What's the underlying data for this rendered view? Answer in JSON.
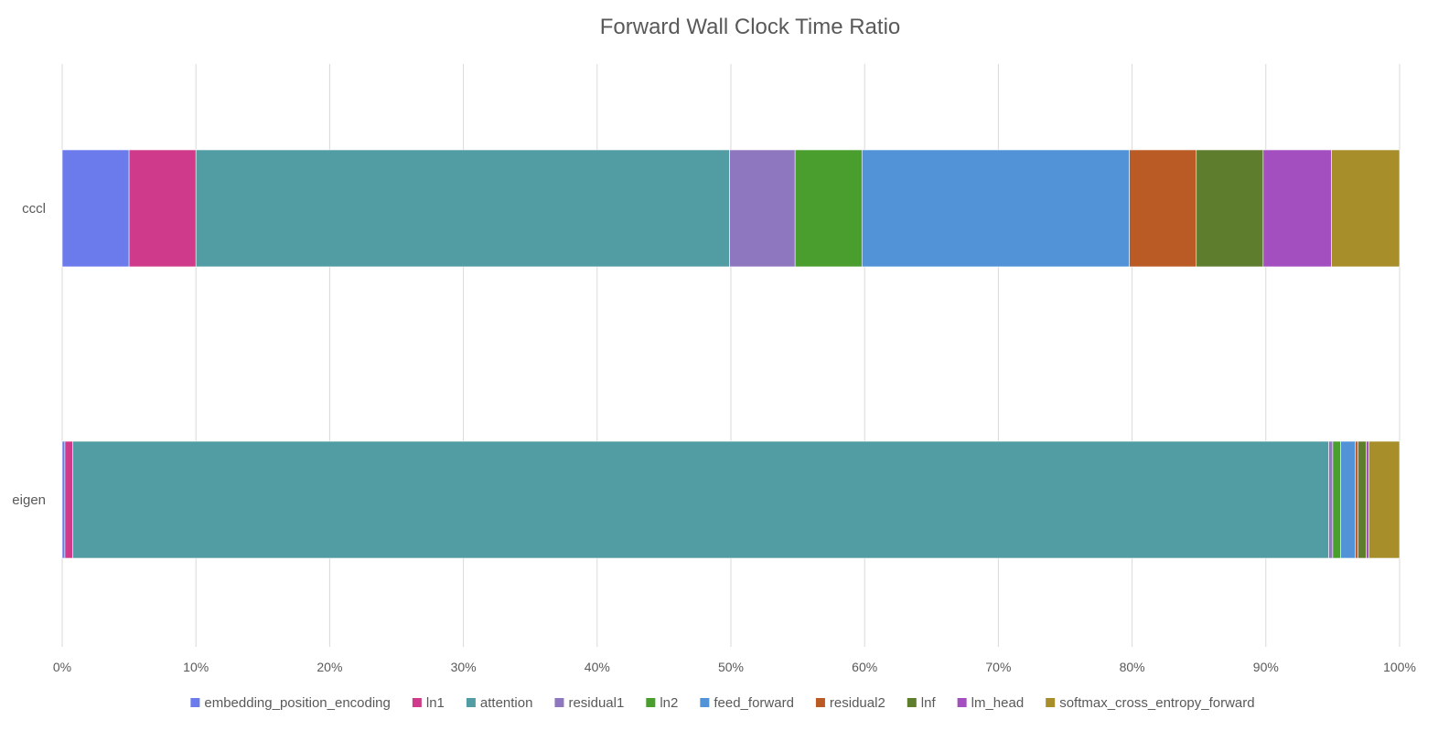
{
  "chart_data": {
    "type": "bar",
    "orientation": "horizontal",
    "stacked": "percent",
    "title": "Forward Wall Clock Time Ratio",
    "xlabel": "",
    "ylabel": "",
    "xlim": [
      0,
      100
    ],
    "x_ticks": [
      "0%",
      "10%",
      "20%",
      "30%",
      "40%",
      "50%",
      "60%",
      "70%",
      "80%",
      "90%",
      "100%"
    ],
    "grid": "vertical",
    "legend_position": "bottom",
    "categories": [
      "cccl",
      "eigen"
    ],
    "series": [
      {
        "name": "embedding_position_encoding",
        "color": "#6B7BEB",
        "values": [
          5.0,
          0.2
        ]
      },
      {
        "name": "ln1",
        "color": "#D03A8A",
        "values": [
          5.0,
          0.6
        ]
      },
      {
        "name": "attention",
        "color": "#529DA3",
        "values": [
          39.9,
          93.9
        ]
      },
      {
        "name": "residual1",
        "color": "#8E77BE",
        "values": [
          4.9,
          0.3
        ]
      },
      {
        "name": "ln2",
        "color": "#4A9E2E",
        "values": [
          5.0,
          0.6
        ]
      },
      {
        "name": "feed_forward",
        "color": "#5293D8",
        "values": [
          20.0,
          1.1
        ]
      },
      {
        "name": "residual2",
        "color": "#BA5A25",
        "values": [
          5.0,
          0.2
        ]
      },
      {
        "name": "lnf",
        "color": "#5E7E2E",
        "values": [
          5.0,
          0.6
        ]
      },
      {
        "name": "lm_head",
        "color": "#A34FBF",
        "values": [
          5.1,
          0.2
        ]
      },
      {
        "name": "softmax_cross_entropy_forward",
        "color": "#A88E2A",
        "values": [
          5.1,
          2.3
        ]
      }
    ]
  }
}
